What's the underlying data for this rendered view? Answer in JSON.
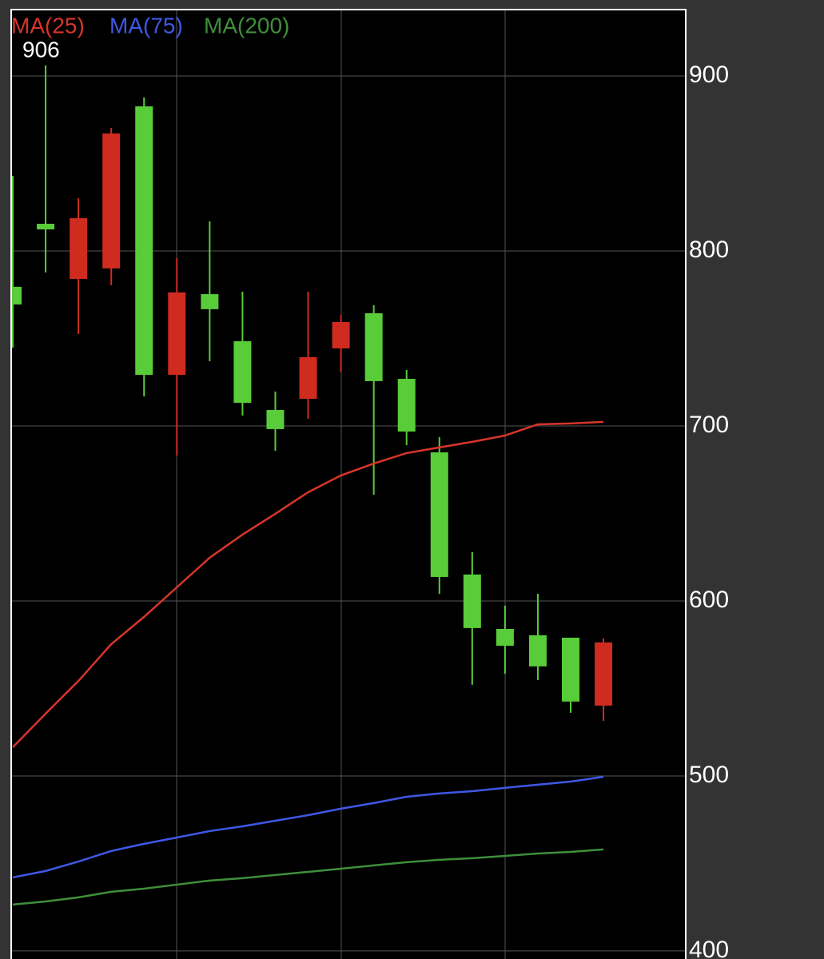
{
  "chart_data": {
    "type": "candlestick",
    "open": [
      779.5,
      815.5,
      784.0,
      790.0,
      882.6,
      729.2,
      775.3,
      748.4,
      709.1,
      715.5,
      744.3,
      764.4,
      726.9,
      684.9,
      615.1,
      584.0,
      580.4,
      579.0,
      540.2
    ],
    "high": [
      842.9,
      906,
      830.1,
      870.3,
      887.7,
      795.9,
      816.9,
      776.7,
      719.6,
      776.7,
      763.5,
      769.0,
      732.0,
      693.6,
      627.9,
      597.3,
      604.1,
      579.0,
      578.5
    ],
    "low": [
      744.7,
      787.7,
      752.5,
      780.4,
      716.9,
      683.1,
      737.0,
      705.9,
      685.8,
      704.1,
      730.6,
      660.7,
      689.0,
      604.1,
      552.1,
      558.4,
      554.8,
      536.1,
      531.5
    ],
    "close": [
      769.4,
      812.3,
      818.7,
      867.1,
      729.2,
      776.3,
      766.7,
      713.2,
      698.2,
      739.3,
      759.4,
      725.6,
      696.8,
      613.7,
      584.5,
      574.4,
      562.6,
      542.5,
      576.3
    ],
    "up_color": "#cf2b1f",
    "down_color": "#59cc3a",
    "high_label": {
      "index": 1,
      "text": "906"
    },
    "series": [
      {
        "name": "MA(25)",
        "color": "#d8352a",
        "values": [
          516.4,
          535.6,
          554.3,
          575.3,
          590.9,
          607.8,
          624.7,
          637.9,
          649.8,
          662.1,
          671.7,
          678.5,
          684.5,
          687.7,
          690.9,
          694.5,
          700.9,
          701.4,
          702.3
        ]
      },
      {
        "name": "MA(75)",
        "color": "#3f58e6",
        "values": [
          442.0,
          445.7,
          451.1,
          457.1,
          461.2,
          464.8,
          468.5,
          471.2,
          474.4,
          477.6,
          481.3,
          484.5,
          488.1,
          490.0,
          491.3,
          493.2,
          495.0,
          496.8,
          499.5
        ]
      },
      {
        "name": "MA(200)",
        "color": "#3f8f3a",
        "values": [
          426.5,
          428.3,
          430.6,
          433.8,
          435.6,
          437.9,
          440.2,
          441.6,
          443.4,
          445.2,
          447.0,
          448.9,
          450.7,
          452.1,
          453.0,
          454.3,
          455.7,
          456.6,
          458.0
        ]
      }
    ],
    "ylim": [
      395.4,
      937.9
    ],
    "yticks": [
      400,
      500,
      600,
      700,
      800,
      900
    ],
    "grid": true
  }
}
